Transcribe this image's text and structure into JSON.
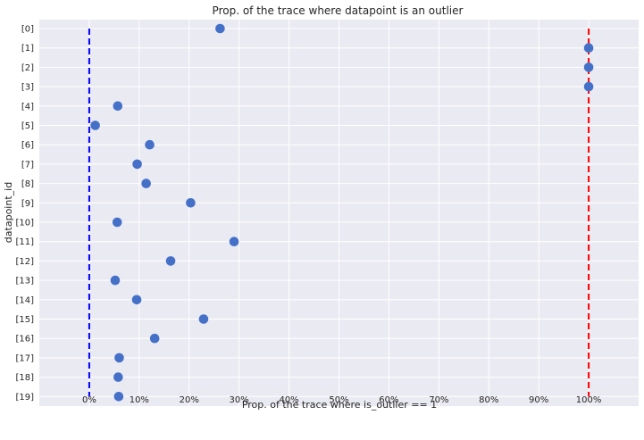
{
  "chart_data": {
    "type": "scatter",
    "title": "Prop. of the trace where datapoint is an outlier",
    "xlabel": "Prop. of the trace where is_outlier == 1",
    "ylabel": "datapoint_id",
    "xlim": [
      -0.1,
      1.1
    ],
    "xticks": [
      0,
      0.1,
      0.2,
      0.3,
      0.4,
      0.5,
      0.6,
      0.7,
      0.8,
      0.9,
      1.0
    ],
    "xtick_labels": [
      "0%",
      "10%",
      "20%",
      "30%",
      "40%",
      "50%",
      "60%",
      "70%",
      "80%",
      "90%",
      "100%"
    ],
    "categories": [
      "[0]",
      "[1]",
      "[2]",
      "[3]",
      "[4]",
      "[5]",
      "[6]",
      "[7]",
      "[8]",
      "[9]",
      "[10]",
      "[11]",
      "[12]",
      "[13]",
      "[14]",
      "[15]",
      "[16]",
      "[17]",
      "[18]",
      "[19]"
    ],
    "values": [
      0.262,
      1.0,
      1.0,
      1.0,
      0.057,
      0.012,
      0.121,
      0.096,
      0.114,
      0.203,
      0.056,
      0.29,
      0.163,
      0.052,
      0.095,
      0.229,
      0.131,
      0.06,
      0.058,
      0.059
    ],
    "reference_lines": [
      {
        "x": 0.0,
        "color": "#0000ff",
        "style": "dashed"
      },
      {
        "x": 1.0,
        "color": "#ff0000",
        "style": "dashed"
      }
    ],
    "point_color": "#4470c8",
    "background": "#eaeaf2",
    "grid": true
  }
}
